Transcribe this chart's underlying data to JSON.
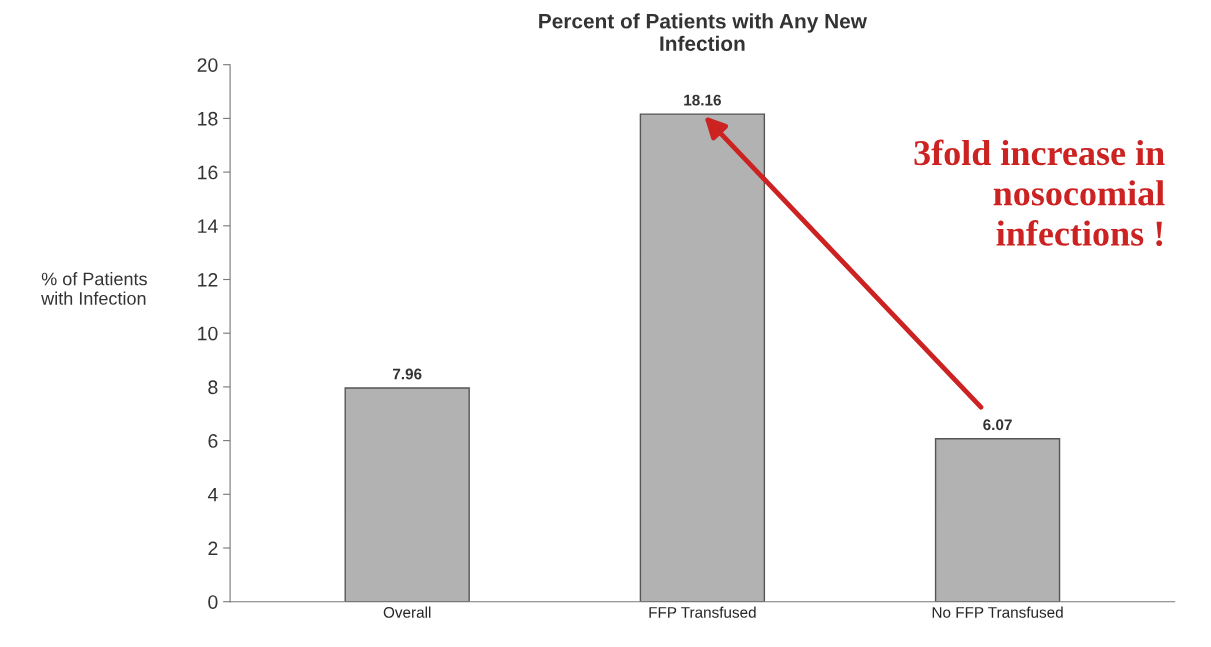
{
  "chart_data": {
    "type": "bar",
    "title": "Percent of Patients with Any New\nInfection",
    "ylabel": "% of Patients\nwith Infection",
    "categories": [
      "Overall",
      "FFP Transfused",
      "No FFP Transfused"
    ],
    "values": [
      7.96,
      18.16,
      6.07
    ],
    "color": "#b2b2b2",
    "ylim": [
      0,
      20
    ],
    "yticks": [
      0,
      2,
      4,
      6,
      8,
      10,
      12,
      14,
      16,
      18,
      20
    ],
    "grid": false,
    "data_labels": true,
    "annotations": [
      "3fold increase in\nnosocomial\ninfections !"
    ]
  }
}
